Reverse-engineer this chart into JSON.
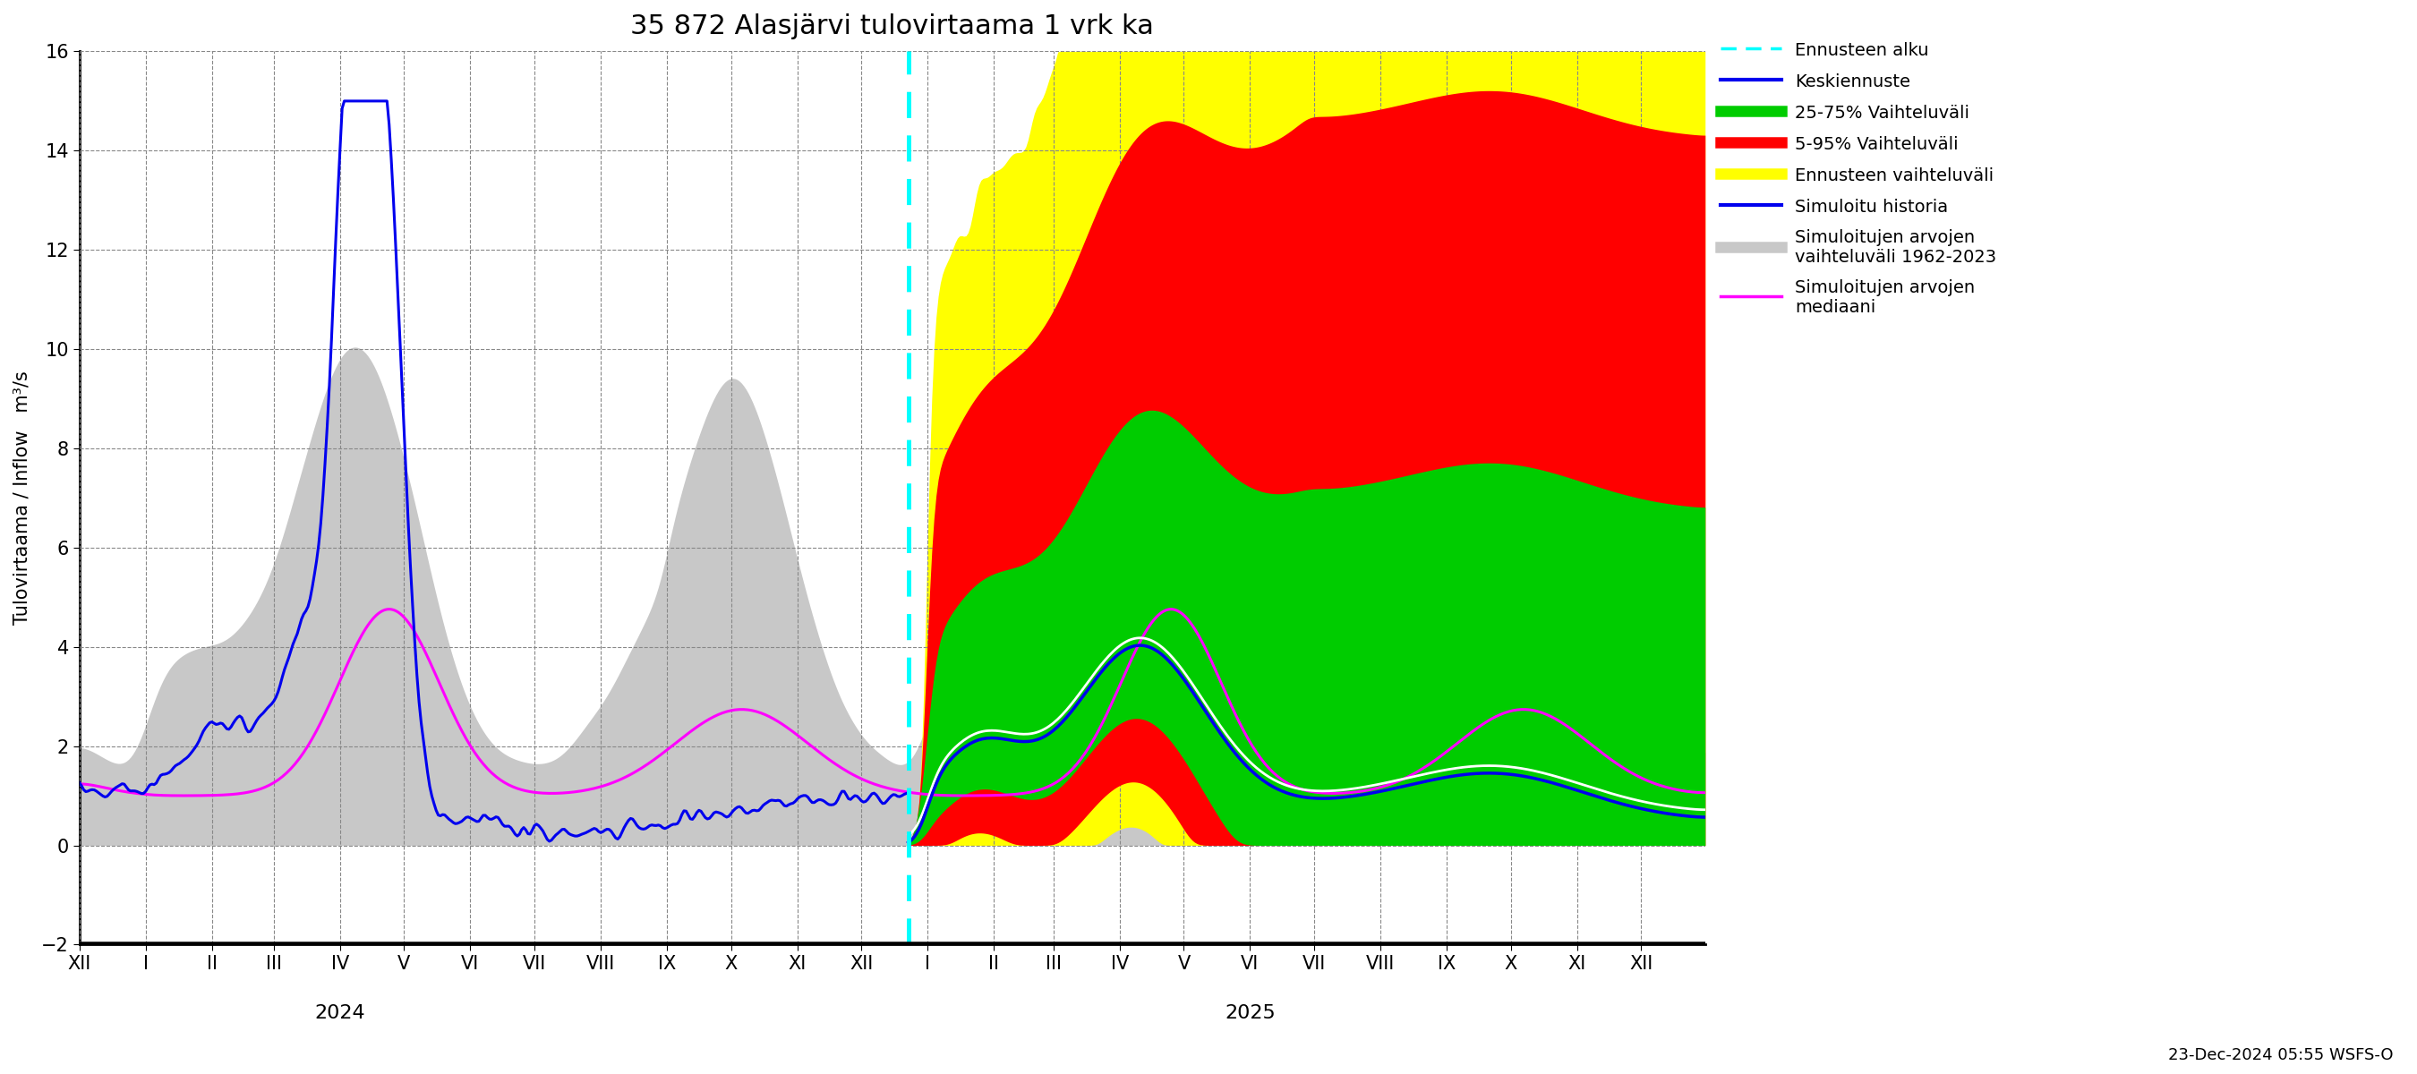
{
  "title": "35 872 Alasjärvi tulovirtaama 1 vrk ka",
  "ylabel": "Tulovirtaama / Inflow   m³/s",
  "ylim": [
    -2,
    16
  ],
  "yticks": [
    -2,
    0,
    2,
    4,
    6,
    8,
    10,
    12,
    14,
    16
  ],
  "timestamp_label": "23-Dec-2024 05:55 WSFS-O",
  "background_color": "#ffffff",
  "grid_color": "#888888",
  "title_fontsize": 22,
  "tick_fontsize": 15,
  "legend_fontsize": 14,
  "ylabel_fontsize": 15
}
